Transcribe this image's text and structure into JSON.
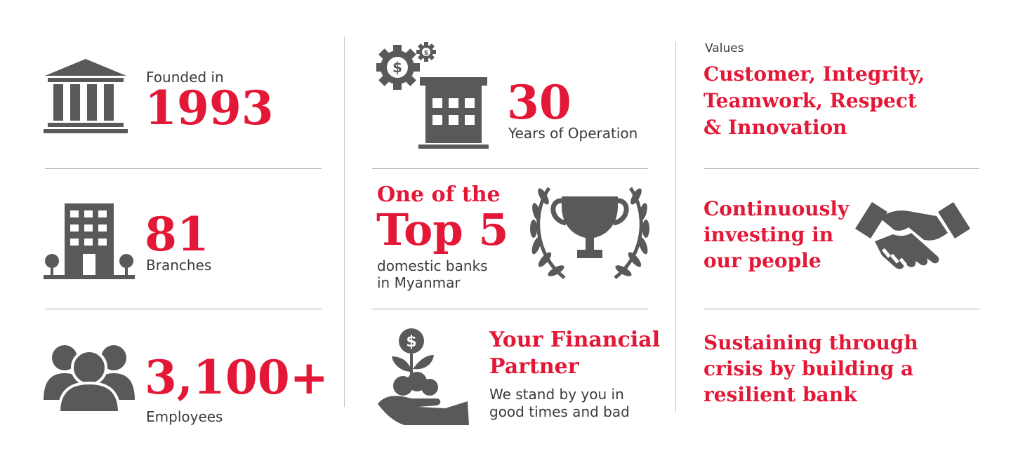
{
  "col1": {
    "founded": {
      "label": "Founded in",
      "value": "1993",
      "icon": "bank-building-icon"
    },
    "branches": {
      "value": "81",
      "label": "Branches",
      "icon": "office-building-icon"
    },
    "employees": {
      "value": "3,100+",
      "label": "Employees",
      "icon": "people-group-icon"
    }
  },
  "col2": {
    "operation": {
      "value": "30",
      "label": "Years of Operation",
      "icon": "building-gears-icon"
    },
    "top5": {
      "line1": "One of the",
      "line2": "Top 5",
      "sub1": "domestic banks",
      "sub2": "in Myanmar",
      "icon": "trophy-laurel-icon"
    },
    "partner": {
      "title1": "Your Financial",
      "title2": "Partner",
      "sub1": "We stand by you in",
      "sub2": "good times and bad",
      "icon": "money-plant-hand-icon"
    }
  },
  "col3": {
    "values": {
      "label": "Values",
      "line1": "Customer, Integrity,",
      "line2": "Teamwork, Respect",
      "line3": "& Innovation"
    },
    "people": {
      "line1": "Continuously",
      "line2": "investing in",
      "line3": "our people",
      "icon": "handshake-icon"
    },
    "resilient": {
      "line1": "Sustaining through",
      "line2": "crisis by building a",
      "line3": "resilient bank"
    }
  },
  "colors": {
    "accent": "#e31837",
    "icon": "#58595b",
    "text": "#3b3b3b"
  }
}
